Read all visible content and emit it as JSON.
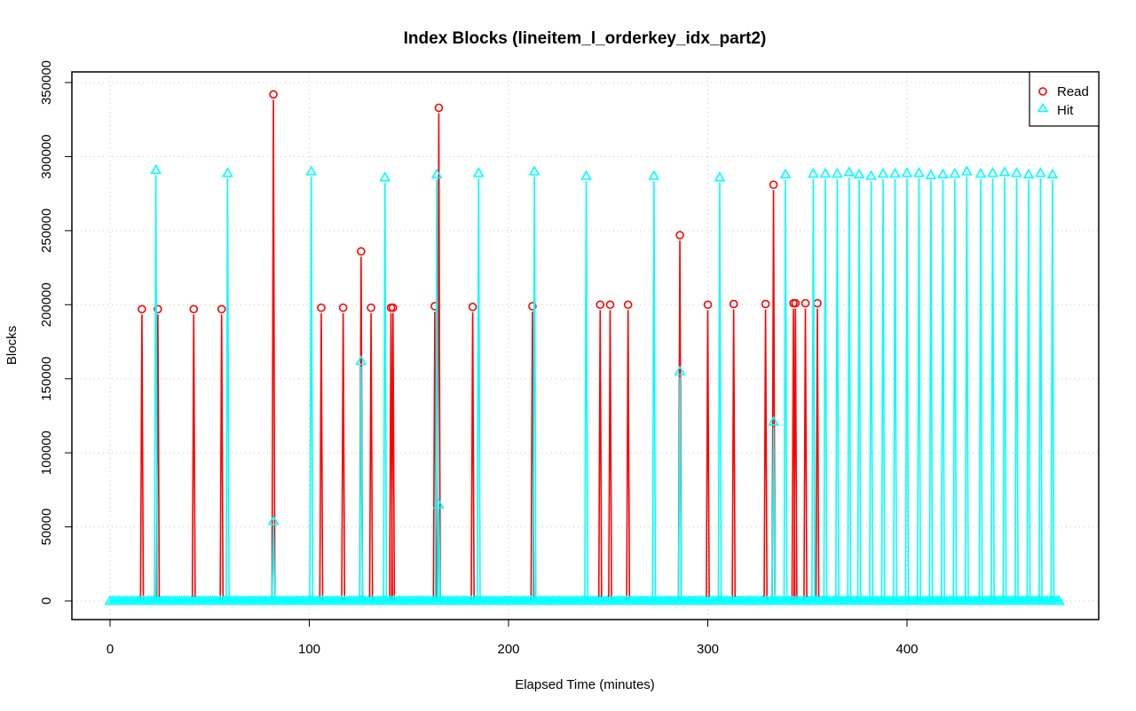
{
  "chart_data": {
    "type": "line",
    "title": "Index Blocks (lineitem_l_orderkey_idx_part2)",
    "xlabel": "Elapsed Time (minutes)",
    "ylabel": "Blocks",
    "xlim": [
      0,
      478
    ],
    "ylim": [
      0,
      350000
    ],
    "x_ticks": [
      0,
      100,
      200,
      300,
      400
    ],
    "y_ticks": [
      0,
      50000,
      100000,
      150000,
      200000,
      250000,
      300000,
      350000
    ],
    "x_tick_labels": [
      "0",
      "100",
      "200",
      "300",
      "400"
    ],
    "y_tick_labels": [
      "0",
      "50000",
      "100000",
      "150000",
      "200000",
      "250000",
      "300000",
      "350000"
    ],
    "grid": true,
    "legend_position": "top-right",
    "x_range_baseline": [
      0,
      478
    ],
    "series": [
      {
        "name": "Read",
        "color": "#ff0000",
        "marker": "circle",
        "spikes": [
          {
            "x": 16,
            "y": 197000
          },
          {
            "x": 24,
            "y": 197000
          },
          {
            "x": 42,
            "y": 197000
          },
          {
            "x": 56,
            "y": 197000
          },
          {
            "x": 82,
            "y": 342000
          },
          {
            "x": 106,
            "y": 198000
          },
          {
            "x": 117,
            "y": 198000
          },
          {
            "x": 126,
            "y": 236000
          },
          {
            "x": 131,
            "y": 198000
          },
          {
            "x": 141,
            "y": 198000
          },
          {
            "x": 142,
            "y": 198000
          },
          {
            "x": 163,
            "y": 199000
          },
          {
            "x": 165,
            "y": 333000
          },
          {
            "x": 182,
            "y": 198500
          },
          {
            "x": 212,
            "y": 199000
          },
          {
            "x": 246,
            "y": 200000
          },
          {
            "x": 251,
            "y": 200000
          },
          {
            "x": 260,
            "y": 200000
          },
          {
            "x": 286,
            "y": 247000
          },
          {
            "x": 300,
            "y": 200000
          },
          {
            "x": 313,
            "y": 200500
          },
          {
            "x": 329,
            "y": 200500
          },
          {
            "x": 333,
            "y": 281000
          },
          {
            "x": 343,
            "y": 201000
          },
          {
            "x": 344,
            "y": 201000
          },
          {
            "x": 349,
            "y": 201000
          },
          {
            "x": 355,
            "y": 201000
          }
        ]
      },
      {
        "name": "Hit",
        "color": "#00ffff",
        "marker": "triangle",
        "spikes": [
          {
            "x": 23,
            "y": 291000
          },
          {
            "x": 59,
            "y": 289000
          },
          {
            "x": 82,
            "y": 54000
          },
          {
            "x": 101,
            "y": 290000
          },
          {
            "x": 126,
            "y": 162000
          },
          {
            "x": 138,
            "y": 286000
          },
          {
            "x": 164,
            "y": 288000
          },
          {
            "x": 165,
            "y": 65000
          },
          {
            "x": 185,
            "y": 289000
          },
          {
            "x": 213,
            "y": 290000
          },
          {
            "x": 239,
            "y": 287000
          },
          {
            "x": 273,
            "y": 287000
          },
          {
            "x": 286,
            "y": 155000
          },
          {
            "x": 306,
            "y": 286000
          },
          {
            "x": 333,
            "y": 121000
          },
          {
            "x": 339,
            "y": 288000
          },
          {
            "x": 353,
            "y": 288500
          },
          {
            "x": 359,
            "y": 288500
          },
          {
            "x": 365,
            "y": 288500
          },
          {
            "x": 371,
            "y": 289500
          },
          {
            "x": 376,
            "y": 288000
          },
          {
            "x": 382,
            "y": 287000
          },
          {
            "x": 388,
            "y": 288500
          },
          {
            "x": 394,
            "y": 288500
          },
          {
            "x": 400,
            "y": 289000
          },
          {
            "x": 406,
            "y": 289000
          },
          {
            "x": 412,
            "y": 287500
          },
          {
            "x": 418,
            "y": 288000
          },
          {
            "x": 424,
            "y": 288500
          },
          {
            "x": 430,
            "y": 290000
          },
          {
            "x": 437,
            "y": 288500
          },
          {
            "x": 443,
            "y": 289000
          },
          {
            "x": 449,
            "y": 289500
          },
          {
            "x": 455,
            "y": 289000
          },
          {
            "x": 461,
            "y": 288000
          },
          {
            "x": 467,
            "y": 289000
          },
          {
            "x": 473,
            "y": 288000
          }
        ]
      }
    ]
  }
}
